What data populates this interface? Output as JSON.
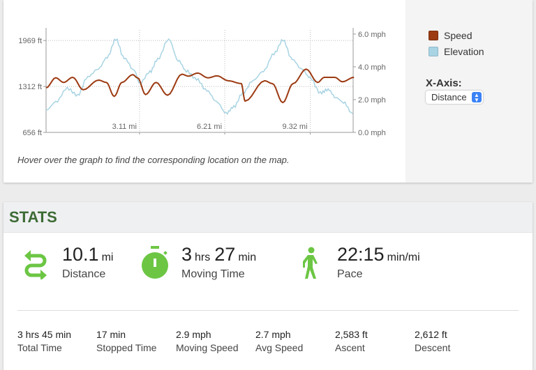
{
  "chart_data": {
    "type": "line",
    "xlabel": "Distance",
    "x_ticks": [
      3.11,
      6.21,
      9.32
    ],
    "x_tick_labels": [
      "3.11 mi",
      "6.21 mi",
      "9.32 mi"
    ],
    "xlim": [
      -0.29,
      10.88
    ],
    "y_left": {
      "label": "Elevation",
      "ticks": [
        656,
        1312,
        1969
      ],
      "tick_labels": [
        "656 ft",
        "1312 ft",
        "1969 ft"
      ],
      "lim": [
        656,
        2120
      ]
    },
    "y_right": {
      "label": "Speed",
      "ticks": [
        0,
        2,
        4,
        6
      ],
      "tick_labels": [
        "0.0 mph",
        "2.0 mph",
        "4.0 mph",
        "6.0 mph"
      ],
      "lim": [
        0,
        6.25
      ]
    },
    "grid": true,
    "legend": "right",
    "series": [
      {
        "name": "Speed",
        "axis": "right",
        "color": "#9c3a12",
        "x": [
          -0.29,
          0.06,
          0.35,
          0.68,
          1.06,
          1.62,
          1.9,
          2.19,
          2.47,
          2.86,
          3.04,
          3.33,
          3.71,
          4.13,
          4.65,
          4.89,
          5.22,
          5.6,
          5.93,
          6.34,
          6.81,
          6.95,
          7.66,
          7.94,
          8.32,
          8.7,
          9.17,
          9.59,
          9.83,
          10.21,
          10.49,
          10.91
        ],
        "y": [
          2.72,
          3.33,
          3.05,
          3.36,
          2.6,
          3.19,
          3.05,
          2.2,
          3.05,
          3.52,
          3.33,
          2.31,
          3.05,
          2.27,
          3.55,
          3.43,
          3.62,
          3.33,
          3.45,
          3.15,
          2.98,
          1.91,
          3.15,
          2.98,
          1.82,
          2.98,
          3.86,
          3.05,
          3.36,
          3.36,
          3.09,
          3.36
        ]
      },
      {
        "name": "Elevation",
        "axis": "left",
        "color": "#a8d4e3",
        "x": [
          -0.29,
          0.06,
          0.48,
          0.86,
          1.23,
          1.62,
          1.94,
          2.25,
          2.55,
          2.93,
          3.11,
          3.49,
          3.77,
          4.17,
          4.52,
          4.81,
          5.18,
          5.56,
          5.93,
          6.26,
          6.54,
          6.87,
          7.25,
          7.62,
          8.0,
          8.33,
          8.66,
          9.03,
          9.31,
          9.69,
          9.97,
          10.25,
          10.53,
          10.86
        ],
        "y": [
          972,
          1087,
          1286,
          1186,
          1452,
          1568,
          1734,
          1989,
          1718,
          1535,
          1353,
          1519,
          1701,
          1989,
          1684,
          1535,
          1419,
          1253,
          1087,
          928,
          1021,
          1220,
          1402,
          1535,
          1783,
          1976,
          1701,
          1552,
          1435,
          1220,
          1270,
          1154,
          1087,
          922
        ]
      }
    ]
  },
  "legend": {
    "speed": "Speed",
    "elevation": "Elevation",
    "speed_color": "#9c3a12",
    "elevation_color": "#a8d4e3"
  },
  "xaxis_control": {
    "label": "X-Axis:",
    "selected": "Distance"
  },
  "hint": "Hover over the graph to find the corresponding location on the map.",
  "stats": {
    "title": "STATS",
    "distance": {
      "value": "10.1",
      "unit": "mi",
      "label": "Distance"
    },
    "moving_time": {
      "hours": "3",
      "hours_unit": "hrs",
      "minutes": "27",
      "minutes_unit": "min",
      "label": "Moving Time"
    },
    "pace": {
      "value": "22:15",
      "unit": "min/mi",
      "label": "Pace"
    },
    "small": [
      {
        "value": "3 hrs 45 min",
        "label": "Total Time"
      },
      {
        "value": "17 min",
        "label": "Stopped Time"
      },
      {
        "value": "2.9 mph",
        "label": "Moving Speed"
      },
      {
        "value": "2.7 mph",
        "label": "Avg Speed"
      },
      {
        "value": "2,583 ft",
        "label": "Ascent"
      },
      {
        "value": "2,612 ft",
        "label": "Descent"
      }
    ]
  },
  "accent": "#6cc644"
}
